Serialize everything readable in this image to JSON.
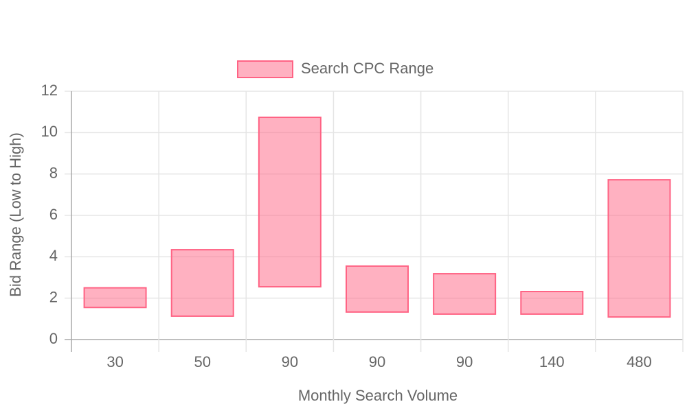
{
  "chart_data": {
    "type": "floating-bar",
    "x_label": "Monthly Search Volume",
    "y_label": "Bid Range (Low to High)",
    "categories": [
      "30",
      "50",
      "90",
      "90",
      "90",
      "140",
      "480"
    ],
    "series": [
      {
        "name": "Search CPC Range",
        "color": "#ff6384",
        "values": [
          [
            1.55,
            2.5
          ],
          [
            1.13,
            4.34
          ],
          [
            2.55,
            10.74
          ],
          [
            1.33,
            3.55
          ],
          [
            1.23,
            3.18
          ],
          [
            1.23,
            2.32
          ],
          [
            1.09,
            7.72
          ]
        ]
      }
    ],
    "ylim": [
      0,
      12
    ],
    "yticks": [
      0,
      2,
      4,
      6,
      8,
      10,
      12
    ],
    "grid": true
  }
}
